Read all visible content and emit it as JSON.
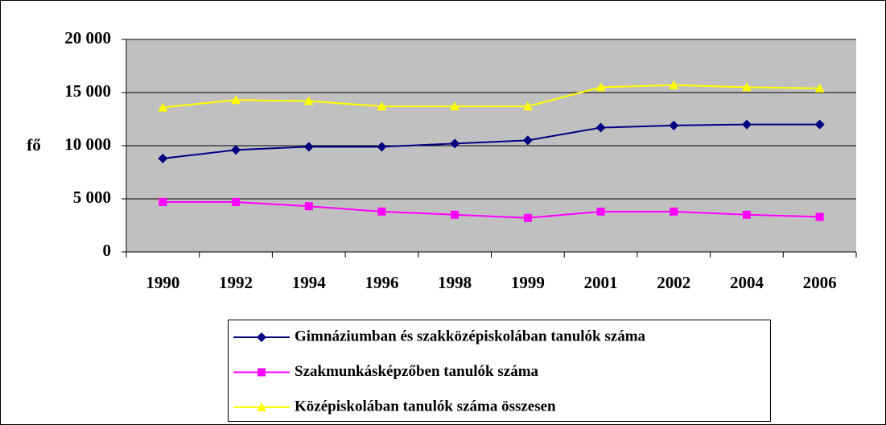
{
  "chart_data": {
    "type": "line",
    "ylabel": "fő",
    "categories": [
      "1990",
      "1992",
      "1994",
      "1996",
      "1998",
      "1999",
      "2001",
      "2002",
      "2004",
      "2006"
    ],
    "series": [
      {
        "name": "Gimnáziumban és szakközépiskolában tanulók száma",
        "color": "#000080",
        "marker": "diamond",
        "values": [
          8800,
          9600,
          9900,
          9900,
          10200,
          10500,
          11700,
          11900,
          12000,
          12000
        ]
      },
      {
        "name": "Szakmunkásképzőben tanulók száma",
        "color": "#ff00ff",
        "marker": "square",
        "values": [
          4700,
          4700,
          4300,
          3800,
          3500,
          3200,
          3800,
          3800,
          3500,
          3300
        ]
      },
      {
        "name": "Középiskolában tanulók száma összesen",
        "color": "#ffff00",
        "marker": "triangle",
        "values": [
          13600,
          14300,
          14200,
          13700,
          13700,
          13700,
          15500,
          15700,
          15500,
          15400
        ]
      }
    ],
    "ylim": [
      0,
      20000
    ],
    "yticks": [
      0,
      {
        "value": 5000,
        "label": "5 000"
      },
      {
        "value": 10000,
        "label": "10 000"
      },
      {
        "value": 15000,
        "label": "15 000"
      },
      {
        "value": 20000,
        "label": "20 000"
      }
    ],
    "grid": true,
    "plot_background": "#c0c0c0",
    "legend": "bottom"
  }
}
